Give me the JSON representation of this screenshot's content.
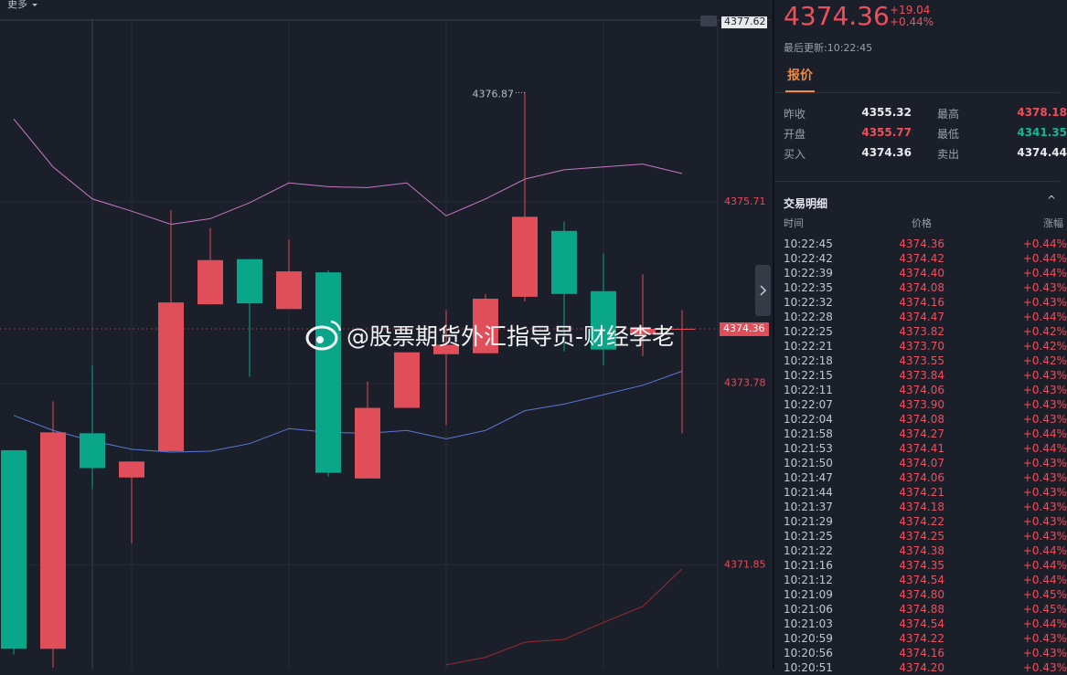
{
  "toolbar": {
    "more": "更多"
  },
  "watermark": "@股票期货外汇指导员-财经李老",
  "chart_data": {
    "type": "candlestick",
    "categories": [
      null,
      null,
      null,
      null,
      null,
      null,
      null,
      null,
      null,
      null,
      null,
      null,
      null,
      null,
      null,
      null,
      null,
      null
    ],
    "open": [
      4373.07,
      4370.96,
      4373.25,
      4372.78,
      4373.06,
      4374.62,
      4375.1,
      4374.57,
      4374.96,
      4372.77,
      4373.52,
      4374.09,
      4374.1,
      4374.7,
      4375.4,
      4374.76,
      4374.3,
      4374.36
    ],
    "high": [
      4373.07,
      4373.59,
      4373.97,
      4372.95,
      4375.62,
      4375.43,
      4375.1,
      4375.31,
      4374.98,
      4373.8,
      4374.11,
      4374.56,
      4374.73,
      4376.87,
      4375.5,
      4375.16,
      4374.94,
      4374.56
    ],
    "low": [
      4370.9,
      4370.76,
      4372.66,
      4372.08,
      4373.06,
      4374.62,
      4373.85,
      4374.57,
      4372.79,
      4372.77,
      4373.52,
      4373.34,
      4374.1,
      4374.65,
      4374.12,
      4373.97,
      4374.07,
      4373.25
    ],
    "close": [
      4370.96,
      4373.26,
      4372.88,
      4372.95,
      4374.64,
      4375.09,
      4374.63,
      4374.97,
      4372.83,
      4373.52,
      4374.11,
      4374.19,
      4374.68,
      4375.55,
      4374.73,
      4374.14,
      4374.36,
      4374.36
    ],
    "up_color": "#e04e5a",
    "down_color": "#0aa68a",
    "lines": [
      {
        "color": "#c877c4",
        "values": [
          4376.59,
          4376.08,
          4375.74,
          4375.61,
          4375.47,
          4375.53,
          4375.7,
          4375.91,
          4375.87,
          4375.86,
          4375.91,
          4375.56,
          4375.74,
          4375.95,
          4376.05,
          4376.08,
          4376.11,
          4376.01
        ]
      },
      {
        "color": "#5b78d8",
        "values": [
          4373.44,
          4373.28,
          4373.17,
          4373.08,
          4373.05,
          4373.06,
          4373.14,
          4373.3,
          4373.26,
          4373.25,
          4373.28,
          4373.19,
          4373.28,
          4373.49,
          4373.56,
          4373.66,
          4373.76,
          4373.91
        ]
      },
      {
        "color": "#9a2a30",
        "values": [
          null,
          null,
          null,
          null,
          null,
          null,
          null,
          null,
          null,
          null,
          null,
          4370.79,
          4370.87,
          4371.03,
          4371.06,
          4371.24,
          4371.41,
          4371.81
        ]
      }
    ],
    "ylim": [
      4370.74,
      4377.64
    ],
    "yticks": [
      4371.85,
      4373.78,
      4375.71,
      4377.62
    ],
    "grid": true
  },
  "quote": {
    "price": "4374.36",
    "change": "+19.04",
    "change_pct": "+0.44%",
    "updated": "最后更新:10:22:45"
  },
  "tab": "报价",
  "quote_table": [
    [
      "昨收",
      "4355.32",
      "最高",
      "4378.18"
    ],
    [
      "开盘",
      "4355.77",
      "最低",
      "4341.35"
    ],
    [
      "买入",
      "4374.36",
      "卖出",
      "4374.44"
    ]
  ],
  "trades": {
    "title": "交易明细",
    "columns": [
      "时间",
      "价格",
      "涨幅"
    ],
    "rows": [
      [
        "10:22:45",
        "4374.36",
        "+0.44%"
      ],
      [
        "10:22:42",
        "4374.42",
        "+0.44%"
      ],
      [
        "10:22:39",
        "4374.40",
        "+0.44%"
      ],
      [
        "10:22:35",
        "4374.08",
        "+0.43%"
      ],
      [
        "10:22:32",
        "4374.16",
        "+0.43%"
      ],
      [
        "10:22:28",
        "4374.47",
        "+0.44%"
      ],
      [
        "10:22:25",
        "4373.82",
        "+0.42%"
      ],
      [
        "10:22:21",
        "4373.70",
        "+0.42%"
      ],
      [
        "10:22:18",
        "4373.55",
        "+0.42%"
      ],
      [
        "10:22:15",
        "4373.84",
        "+0.43%"
      ],
      [
        "10:22:11",
        "4374.06",
        "+0.43%"
      ],
      [
        "10:22:07",
        "4373.90",
        "+0.43%"
      ],
      [
        "10:22:04",
        "4374.08",
        "+0.43%"
      ],
      [
        "10:21:58",
        "4374.27",
        "+0.44%"
      ],
      [
        "10:21:53",
        "4374.41",
        "+0.44%"
      ],
      [
        "10:21:50",
        "4374.07",
        "+0.43%"
      ],
      [
        "10:21:47",
        "4374.06",
        "+0.43%"
      ],
      [
        "10:21:44",
        "4374.21",
        "+0.43%"
      ],
      [
        "10:21:37",
        "4374.18",
        "+0.43%"
      ],
      [
        "10:21:29",
        "4374.22",
        "+0.43%"
      ],
      [
        "10:21:25",
        "4374.25",
        "+0.43%"
      ],
      [
        "10:21:22",
        "4374.38",
        "+0.44%"
      ],
      [
        "10:21:16",
        "4374.35",
        "+0.44%"
      ],
      [
        "10:21:12",
        "4374.54",
        "+0.44%"
      ],
      [
        "10:21:09",
        "4374.80",
        "+0.45%"
      ],
      [
        "10:21:06",
        "4374.88",
        "+0.45%"
      ],
      [
        "10:21:03",
        "4374.54",
        "+0.44%"
      ],
      [
        "10:20:59",
        "4374.22",
        "+0.43%"
      ],
      [
        "10:20:56",
        "4374.16",
        "+0.43%"
      ],
      [
        "10:20:51",
        "4374.20",
        "+0.43%"
      ]
    ]
  }
}
